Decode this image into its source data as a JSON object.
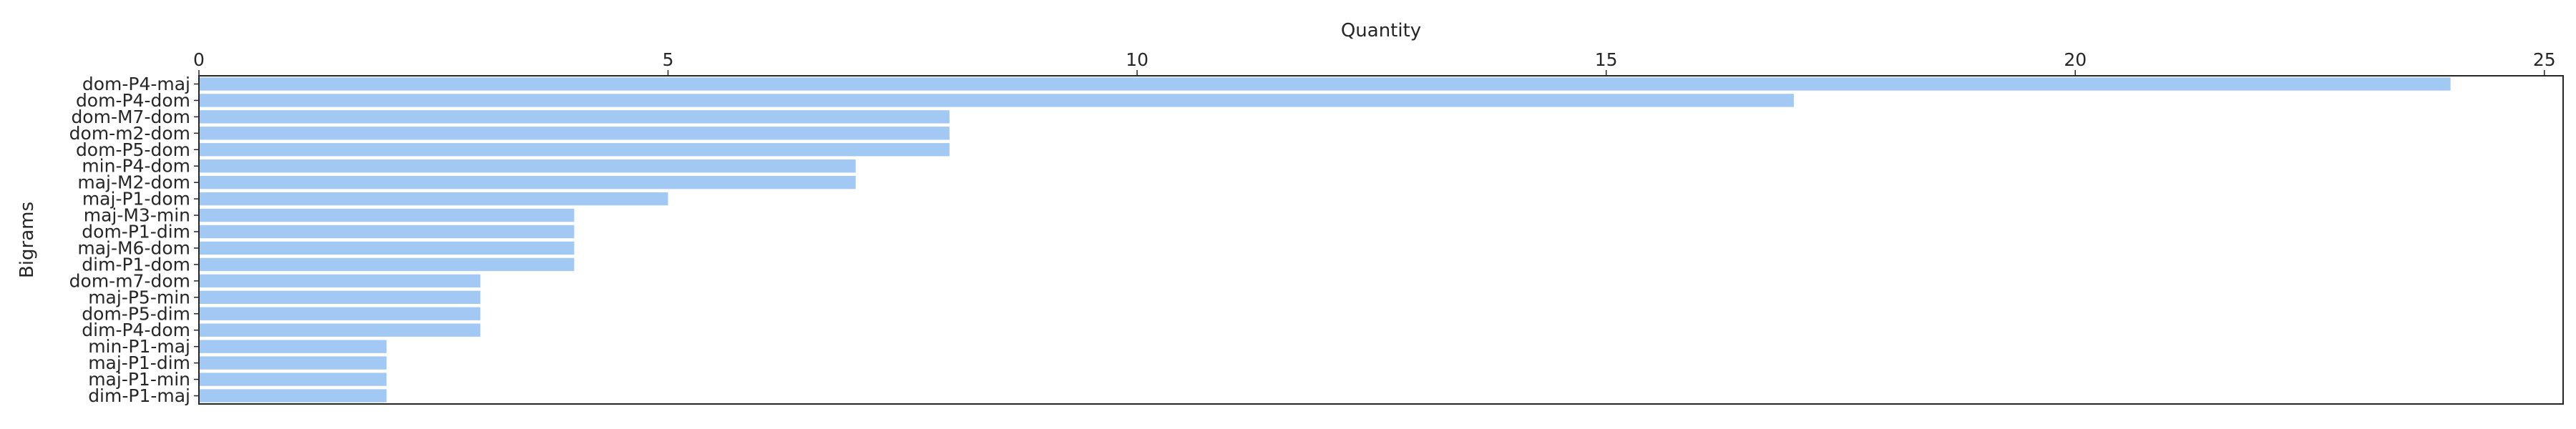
{
  "chart_data": {
    "type": "bar",
    "orientation": "horizontal",
    "title": "",
    "xlabel": "Quantity",
    "ylabel": "Bigrams",
    "xaxis_position": "top",
    "xlim": [
      0,
      25.2
    ],
    "xticks": [
      0,
      5,
      10,
      15,
      20,
      25
    ],
    "grid": false,
    "bar_color": "#a1c9f4",
    "categories": [
      "dom-P4-maj",
      "dom-P4-dom",
      "dom-M7-dom",
      "dom-m2-dom",
      "dom-P5-dom",
      "min-P4-dom",
      "maj-M2-dom",
      "maj-P1-dom",
      "maj-M3-min",
      "dom-P1-dim",
      "maj-M6-dom",
      "dim-P1-dom",
      "dom-m7-dom",
      "maj-P5-min",
      "dom-P5-dim",
      "dim-P4-dom",
      "min-P1-maj",
      "maj-P1-dim",
      "maj-P1-min",
      "dim-P1-maj"
    ],
    "values": [
      24,
      17,
      8,
      8,
      8,
      7,
      7,
      5,
      4,
      4,
      4,
      4,
      3,
      3,
      3,
      3,
      2,
      2,
      2,
      2
    ]
  }
}
